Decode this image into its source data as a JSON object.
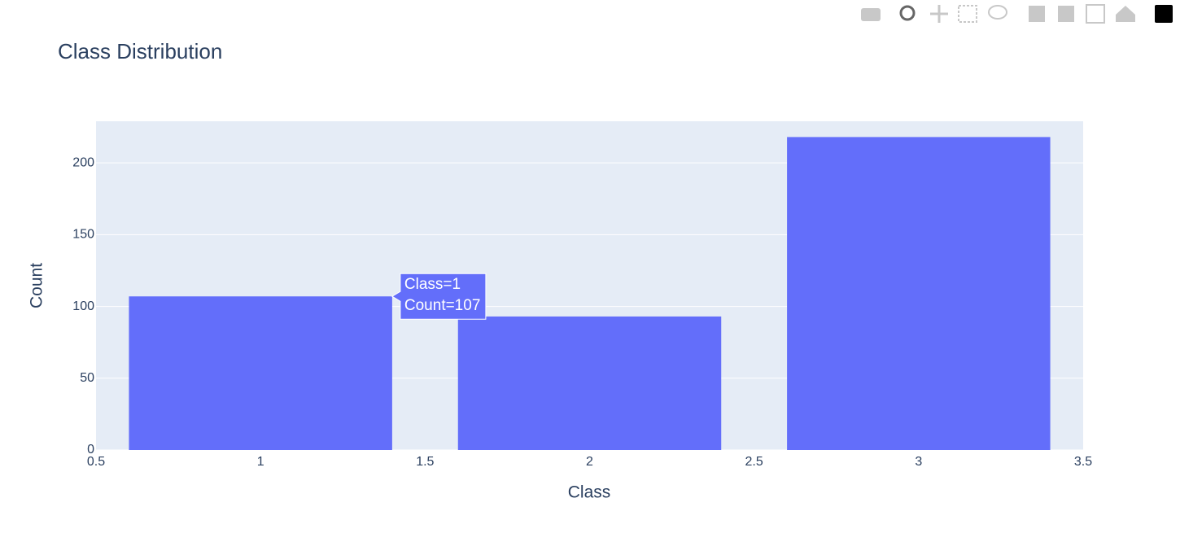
{
  "chart_data": {
    "type": "bar",
    "title": "Class Distribution",
    "x_label": "Class",
    "y_label": "Count",
    "x": [
      1,
      2,
      3
    ],
    "values": [
      107,
      93,
      218
    ],
    "color": "#636efa",
    "xlim": [
      0.5,
      3.5
    ],
    "xticks": [
      0.5,
      1,
      1.5,
      2,
      2.5,
      3,
      3.5
    ],
    "ylim": [
      0,
      229
    ],
    "yticks": [
      0,
      50,
      100,
      150,
      200
    ],
    "grid": true,
    "hover_label": [
      "Class=1",
      "Count=107"
    ]
  }
}
